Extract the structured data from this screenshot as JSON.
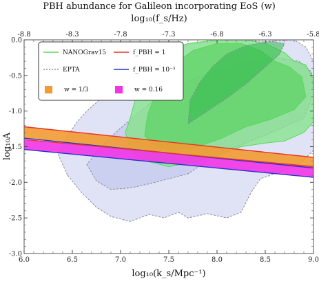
{
  "chart_data": {
    "type": "area",
    "title": "PBH abundance for Galileon incorporating EoS (w)",
    "top_axis_label": "log₁₀(f_s/Hz)",
    "xlabel": "log₁₀(k_s/Mpc⁻¹)",
    "ylabel": "log₁₀A",
    "xlim": [
      6.0,
      9.0
    ],
    "ylim": [
      -3.0,
      0.0
    ],
    "x_ticks": [
      "6.0",
      "6.5",
      "7.0",
      "7.5",
      "8.0",
      "8.5",
      "9.0"
    ],
    "y_ticks": [
      "0.0",
      "-0.5",
      "-1.0",
      "-1.5",
      "-2.0",
      "-2.5",
      "-3.0"
    ],
    "top_ticks": [
      "-8.8",
      "-8.3",
      "-7.8",
      "-7.3",
      "-6.8",
      "-6.3",
      "-5.8"
    ],
    "legend": {
      "placement": "top-left",
      "items": [
        {
          "label": "NANOGrav15",
          "style": "line",
          "color": "#57d957"
        },
        {
          "label": "f_PBH = 1",
          "style": "line",
          "color": "#e8332a"
        },
        {
          "label": "EPTA",
          "style": "dashed",
          "color": "#8a8a98"
        },
        {
          "label": "f_PBH = 10⁻³",
          "style": "line",
          "color": "#2236c8"
        },
        {
          "label": "w = 1/3",
          "style": "swatch",
          "color": "#f29a33"
        },
        {
          "label": "w = 0.16",
          "style": "swatch",
          "color": "#f233e8"
        }
      ]
    },
    "bands": [
      {
        "name": "w = 1/3",
        "color": "#f29a33",
        "upper_line": "f_PBH = 1",
        "upper": [
          [
            6.0,
            -1.22
          ],
          [
            9.0,
            -1.65
          ]
        ],
        "lower": [
          [
            6.0,
            -1.38
          ],
          [
            9.0,
            -1.8
          ]
        ]
      },
      {
        "name": "w = 0.16",
        "color": "#f233e8",
        "upper_line": "f_PBH = 1",
        "upper": [
          [
            6.0,
            -1.4
          ],
          [
            9.0,
            -1.78
          ]
        ],
        "lower": [
          [
            6.0,
            -1.54
          ],
          [
            9.0,
            -1.93
          ]
        ]
      }
    ],
    "lines": [
      {
        "name": "f_PBH = 1",
        "color": "#e8332a",
        "points": [
          [
            6.0,
            -1.22
          ],
          [
            9.0,
            -1.65
          ]
        ]
      },
      {
        "name": "f_PBH = 10⁻³",
        "color": "#2236c8",
        "points": [
          [
            6.0,
            -1.38
          ],
          [
            9.0,
            -1.8
          ]
        ]
      },
      {
        "name": "f_PBH = 1",
        "color": "#e8332a",
        "points": [
          [
            6.0,
            -1.4
          ],
          [
            9.0,
            -1.78
          ]
        ]
      },
      {
        "name": "f_PBH = 10⁻³",
        "color": "#2236c8",
        "points": [
          [
            6.0,
            -1.54
          ],
          [
            9.0,
            -1.93
          ]
        ]
      }
    ],
    "contours": [
      {
        "name": "EPTA",
        "level": "outer",
        "fill": "#ccd0f0",
        "opacity": 0.6,
        "stroke": "#8a8a98",
        "dashed": true,
        "points": [
          [
            6.45,
            -1.9
          ],
          [
            6.6,
            -2.15
          ],
          [
            6.75,
            -2.35
          ],
          [
            6.9,
            -2.48
          ],
          [
            7.1,
            -2.55
          ],
          [
            7.3,
            -2.45
          ],
          [
            7.45,
            -2.5
          ],
          [
            7.6,
            -2.42
          ],
          [
            7.7,
            -2.5
          ],
          [
            7.9,
            -2.44
          ],
          [
            8.1,
            -2.5
          ],
          [
            8.25,
            -2.42
          ],
          [
            8.35,
            -2.15
          ],
          [
            8.45,
            -1.95
          ],
          [
            8.6,
            -1.88
          ],
          [
            8.85,
            -1.75
          ],
          [
            9.0,
            -1.55
          ],
          [
            9.0,
            -0.3
          ],
          [
            8.92,
            -0.1
          ],
          [
            8.8,
            0.0
          ],
          [
            8.5,
            -0.02
          ],
          [
            8.2,
            0.0
          ],
          [
            7.75,
            -0.05
          ],
          [
            7.45,
            -0.15
          ],
          [
            7.1,
            -0.45
          ],
          [
            6.95,
            -0.65
          ],
          [
            6.8,
            -0.82
          ],
          [
            6.65,
            -1.0
          ],
          [
            6.55,
            -1.15
          ],
          [
            6.45,
            -1.35
          ],
          [
            6.35,
            -1.6
          ]
        ]
      },
      {
        "name": "EPTA",
        "level": "inner",
        "fill": "#b8bdea",
        "opacity": 0.5,
        "stroke": "#8a8a98",
        "dashed": true,
        "points": [
          [
            6.65,
            -1.75
          ],
          [
            6.75,
            -1.98
          ],
          [
            6.9,
            -2.1
          ],
          [
            7.1,
            -2.08
          ],
          [
            7.3,
            -2.02
          ],
          [
            7.5,
            -1.95
          ],
          [
            7.7,
            -1.88
          ],
          [
            7.9,
            -1.7
          ],
          [
            8.1,
            -1.55
          ],
          [
            8.35,
            -1.42
          ],
          [
            8.6,
            -1.28
          ],
          [
            8.9,
            -1.1
          ],
          [
            9.0,
            -0.75
          ],
          [
            8.98,
            -0.45
          ],
          [
            8.85,
            -0.3
          ],
          [
            8.6,
            -0.25
          ],
          [
            8.3,
            -0.3
          ],
          [
            8.0,
            -0.42
          ],
          [
            7.75,
            -0.55
          ],
          [
            7.5,
            -0.72
          ],
          [
            7.3,
            -0.9
          ],
          [
            7.1,
            -1.12
          ],
          [
            6.95,
            -1.3
          ],
          [
            6.8,
            -1.5
          ]
        ]
      },
      {
        "name": "NANOGrav15",
        "level": "outer",
        "fill": "#82e486",
        "opacity": 0.75,
        "stroke": "#57d957",
        "dashed": false,
        "points": [
          [
            7.1,
            -1.55
          ],
          [
            7.25,
            -1.7
          ],
          [
            7.5,
            -1.78
          ],
          [
            7.75,
            -1.72
          ],
          [
            8.0,
            -1.62
          ],
          [
            8.25,
            -1.5
          ],
          [
            8.5,
            -1.45
          ],
          [
            8.7,
            -1.42
          ],
          [
            8.9,
            -1.3
          ],
          [
            9.0,
            -1.15
          ],
          [
            9.0,
            -0.55
          ],
          [
            8.92,
            -0.35
          ],
          [
            8.8,
            -0.3
          ],
          [
            8.7,
            -0.18
          ],
          [
            8.5,
            -0.05
          ],
          [
            8.3,
            0.0
          ],
          [
            8.0,
            0.0
          ],
          [
            7.7,
            -0.05
          ],
          [
            7.5,
            -0.15
          ],
          [
            7.35,
            -0.38
          ],
          [
            7.25,
            -0.6
          ],
          [
            7.15,
            -0.85
          ],
          [
            7.1,
            -1.1
          ],
          [
            7.05,
            -1.3
          ]
        ]
      },
      {
        "name": "NANOGrav15",
        "level": "middle",
        "fill": "#56d15d",
        "opacity": 0.65,
        "stroke": "#57d957",
        "dashed": false,
        "points": [
          [
            7.25,
            -1.35
          ],
          [
            7.35,
            -1.48
          ],
          [
            7.55,
            -1.55
          ],
          [
            7.8,
            -1.5
          ],
          [
            8.05,
            -1.38
          ],
          [
            8.3,
            -1.22
          ],
          [
            8.55,
            -1.12
          ],
          [
            8.8,
            -0.98
          ],
          [
            8.92,
            -0.8
          ],
          [
            8.88,
            -0.52
          ],
          [
            8.75,
            -0.38
          ],
          [
            8.6,
            -0.3
          ],
          [
            8.45,
            -0.15
          ],
          [
            8.25,
            -0.05
          ],
          [
            8.0,
            -0.05
          ],
          [
            7.75,
            -0.15
          ],
          [
            7.6,
            -0.3
          ],
          [
            7.45,
            -0.55
          ],
          [
            7.35,
            -0.8
          ],
          [
            7.28,
            -1.05
          ]
        ]
      },
      {
        "name": "NANOGrav15",
        "level": "inner",
        "fill": "#2fb84a",
        "opacity": 0.55,
        "stroke": "#8a8a98",
        "dashed": true,
        "points": [
          [
            7.7,
            -1.18
          ],
          [
            7.9,
            -1.0
          ],
          [
            8.1,
            -0.82
          ],
          [
            8.3,
            -0.62
          ],
          [
            8.5,
            -0.38
          ],
          [
            8.65,
            -0.2
          ],
          [
            8.7,
            -0.05
          ],
          [
            8.55,
            -0.02
          ],
          [
            8.3,
            -0.08
          ],
          [
            8.1,
            -0.2
          ],
          [
            7.95,
            -0.38
          ],
          [
            7.82,
            -0.6
          ],
          [
            7.72,
            -0.85
          ]
        ]
      }
    ]
  }
}
